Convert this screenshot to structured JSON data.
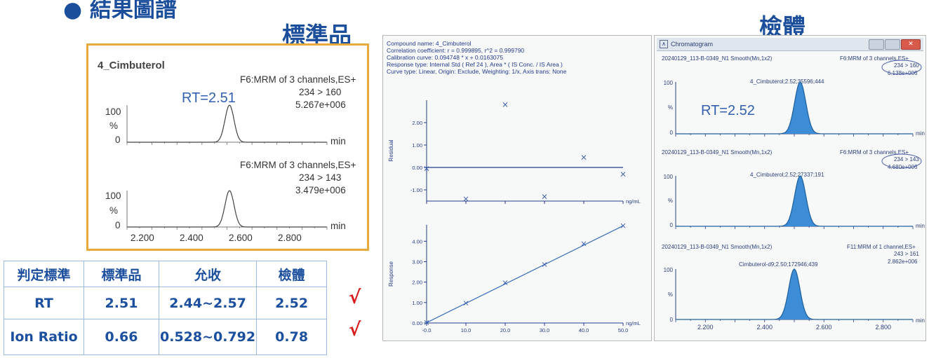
{
  "slide_title": "● 結果圖譜",
  "std_heading": "標準品",
  "sample_heading": "檢體",
  "std_panel": {
    "compound": "4_Cimbuterol",
    "rt_label": "RT=2.51",
    "traces": [
      {
        "title": "F6:MRM of 3 channels,ES+",
        "transition": "234 > 160",
        "intensity": "5.267e+006",
        "y_ticks": [
          "100",
          "%",
          "0"
        ],
        "unit": "min",
        "peak_rt": 2.51
      },
      {
        "title": "F6:MRM of 3 channels,ES+",
        "transition": "234 > 143",
        "intensity": "3.479e+006",
        "y_ticks": [
          "100",
          "%",
          "0"
        ],
        "unit": "min",
        "peak_rt": 2.51
      }
    ],
    "x_ticks": [
      "2.200",
      "2.400",
      "2.600",
      "2.800"
    ]
  },
  "criteria_table": {
    "headers": [
      "判定標準",
      "標準品",
      "允收",
      "檢體"
    ],
    "rows": [
      {
        "label": "RT",
        "standard": "2.51",
        "acceptance": "2.44~2.57",
        "sample": "2.52",
        "mark": "√"
      },
      {
        "label": "Ion Ratio",
        "standard": "0.66",
        "acceptance": "0.528~0.792",
        "sample": "0.78",
        "mark": "√"
      }
    ]
  },
  "calibration": {
    "info_lines": [
      "Compound name: 4_Cimbuterol",
      "Correlation coefficient: r = 0.999895, r^2 = 0.999790",
      "Calibration curve: 0.094748 * x + 0.0163075",
      "Response type: Internal Std ( Ref 24 ), Area * ( IS Conc. / IS Area )",
      "Curve type: Linear, Origin: Exclude, Weighting: 1/x, Axis trans: None"
    ],
    "residual_label": "Residual",
    "response_label": "Response",
    "unit": "ng/mL",
    "residual_ticks": [
      "2.00",
      "1.00",
      "0.00",
      "-1.00"
    ],
    "response_ticks": [
      "4.00",
      "3.00",
      "2.00",
      "1.00",
      "0.00"
    ],
    "x_ticks": [
      "-0.0",
      "10.0",
      "20.0",
      "30.0",
      "40.0",
      "50.0"
    ]
  },
  "chromatogram": {
    "window_title": "Chromatogram",
    "rt_label": "RT=2.52",
    "traces": [
      {
        "sample": "20240129_113-B-0349_N1 Smooth(Mn,1x2)",
        "function": "F6:MRM of 3 channels,ES+",
        "transition": "234 > 160",
        "intensity": "6.138e+006",
        "peak_label": "4_Cimbuterol;2.52;35596;444",
        "peak_rt": 2.52
      },
      {
        "sample": "20240129_113-B-0349_N1 Smooth(Mn,1x2)",
        "function": "F6:MRM of 3 channels,ES+",
        "transition": "234 > 143",
        "intensity": "4.680e+006",
        "peak_label": "4_Cimbuterol;2.52;27337;191",
        "peak_rt": 2.52
      },
      {
        "sample": "20240129_113-B-0349_N1 Smooth(Mn,1x2)",
        "function": "F11:MRM of 1 channel,ES+",
        "transition": "243 > 161",
        "intensity": "2.862e+006",
        "peak_label": "Cimbuterol-d9;2.50;172946;439",
        "peak_rt": 2.5
      }
    ],
    "y_ticks": [
      "100",
      "%",
      "0"
    ],
    "unit": "min",
    "x_ticks": [
      "2.200",
      "2.400",
      "2.600",
      "2.800"
    ]
  },
  "chart_data": [
    {
      "type": "line",
      "title": "4_Cimbuterol",
      "subtitle": "F6:MRM of 3 channels,ES+ 234 > 160",
      "xlabel": "min",
      "ylabel": "%",
      "xlim": [
        2.1,
        2.9
      ],
      "ylim": [
        0,
        100
      ],
      "series": [
        {
          "name": "234 > 160",
          "peak_x": 2.51,
          "peak_y": 100
        }
      ]
    },
    {
      "type": "line",
      "title": "",
      "subtitle": "F6:MRM of 3 channels,ES+ 234 > 143",
      "xlabel": "min",
      "ylabel": "%",
      "xlim": [
        2.1,
        2.9
      ],
      "ylim": [
        0,
        100
      ],
      "series": [
        {
          "name": "234 > 143",
          "peak_x": 2.51,
          "peak_y": 100
        }
      ]
    },
    {
      "type": "scatter",
      "title": "",
      "xlabel": "ng/mL",
      "ylabel": "Residual",
      "ylim": [
        -1.5,
        3.0
      ],
      "xlim": [
        0,
        50
      ],
      "x": [
        0,
        10,
        20,
        30,
        40,
        50
      ],
      "y": [
        -0.05,
        -1.4,
        2.8,
        -1.3,
        0.45,
        -0.3
      ]
    },
    {
      "type": "line",
      "title": "",
      "xlabel": "ng/mL",
      "ylabel": "Response",
      "xlim": [
        0,
        50
      ],
      "ylim": [
        0,
        4.8
      ],
      "series": [
        {
          "name": "fit",
          "x": [
            0,
            50
          ],
          "y": [
            0.0163,
            4.754
          ]
        }
      ],
      "points": {
        "x": [
          0,
          10,
          20,
          30,
          40,
          50
        ],
        "y": [
          0.02,
          0.97,
          1.97,
          2.86,
          3.88,
          4.76
        ]
      }
    },
    {
      "type": "area",
      "title": "",
      "subtitle": "F6:MRM of 3 channels,ES+ 234 > 160",
      "xlabel": "min",
      "ylabel": "%",
      "xlim": [
        2.1,
        2.9
      ],
      "ylim": [
        0,
        100
      ],
      "series": [
        {
          "name": "234 > 160",
          "peak_x": 2.52,
          "peak_y": 100
        }
      ]
    },
    {
      "type": "area",
      "title": "",
      "subtitle": "F6:MRM of 3 channels,ES+ 234 > 143",
      "xlabel": "min",
      "ylabel": "%",
      "xlim": [
        2.1,
        2.9
      ],
      "ylim": [
        0,
        100
      ],
      "series": [
        {
          "name": "234 > 143",
          "peak_x": 2.52,
          "peak_y": 100
        }
      ]
    },
    {
      "type": "area",
      "title": "",
      "subtitle": "F11:MRM of 1 channel,ES+ 243 > 161",
      "xlabel": "min",
      "ylabel": "%",
      "xlim": [
        2.1,
        2.9
      ],
      "ylim": [
        0,
        100
      ],
      "series": [
        {
          "name": "243 > 161",
          "peak_x": 2.5,
          "peak_y": 100
        }
      ]
    }
  ]
}
